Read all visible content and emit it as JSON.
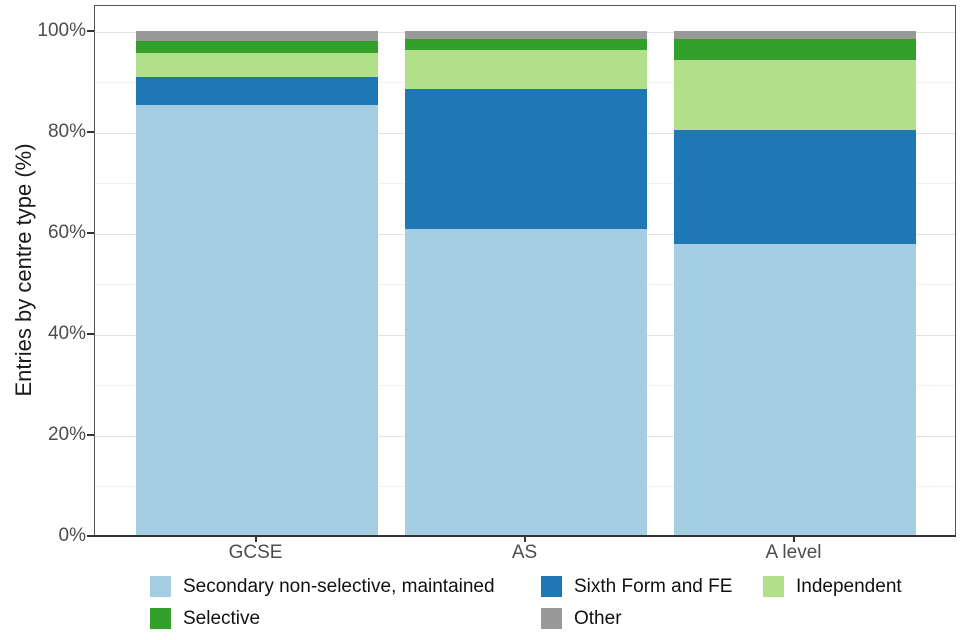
{
  "chart_data": {
    "type": "bar",
    "stacked": true,
    "title": "",
    "xlabel": "",
    "ylabel": "Entries by centre type (%)",
    "categories": [
      "GCSE",
      "AS",
      "A level"
    ],
    "series": [
      {
        "name": "Secondary non-selective, maintained",
        "color": "#A6CEE3",
        "values": [
          85.2,
          60.8,
          57.7
        ]
      },
      {
        "name": "Sixth Form and FE",
        "color": "#1F78B4",
        "values": [
          5.6,
          27.6,
          22.6
        ]
      },
      {
        "name": "Independent",
        "color": "#B2DF8A",
        "values": [
          4.8,
          7.8,
          13.8
        ]
      },
      {
        "name": "Selective",
        "color": "#33A02C",
        "values": [
          2.4,
          2.1,
          4.2
        ]
      },
      {
        "name": "Other",
        "color": "#999999",
        "values": [
          2.0,
          1.7,
          1.7
        ]
      }
    ],
    "ylim": [
      0,
      100
    ],
    "y_tick_values": [
      0,
      20,
      40,
      60,
      80,
      100
    ],
    "y_tick_labels": [
      "0%",
      "20%",
      "40%",
      "60%",
      "80%",
      "100%"
    ],
    "y_minor_gridlines": [
      10,
      30,
      50,
      70,
      90
    ],
    "grid": true,
    "legend_position": "bottom",
    "legend_rows": [
      [
        0,
        1,
        2
      ],
      [
        3,
        4
      ]
    ]
  }
}
